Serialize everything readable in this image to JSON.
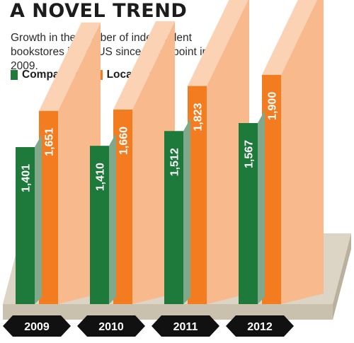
{
  "chart_data": {
    "type": "bar",
    "title": "A NOVEL TREND",
    "subtitle": "Growth in the number of independent bookstores in the US since a low point in 2009.",
    "categories": [
      "2009",
      "2010",
      "2011",
      "2012"
    ],
    "series": [
      {
        "name": "Companies",
        "values": [
          1401,
          1410,
          1512,
          1567
        ],
        "labels": [
          "1,401",
          "1,410",
          "1,512",
          "1,567"
        ]
      },
      {
        "name": "Locations",
        "values": [
          1651,
          1660,
          1823,
          1900
        ],
        "labels": [
          "1,651",
          "1,660",
          "1,823",
          "1,900"
        ]
      }
    ],
    "grid": false,
    "legend_position": "top-left"
  },
  "colors": {
    "companies": "#1e7a3a",
    "companies_side": "#7fa98a",
    "locations": "#f47c20",
    "locations_side": "#f8b98c",
    "platform": "#dcd4c4",
    "year_badge": "#111111"
  }
}
